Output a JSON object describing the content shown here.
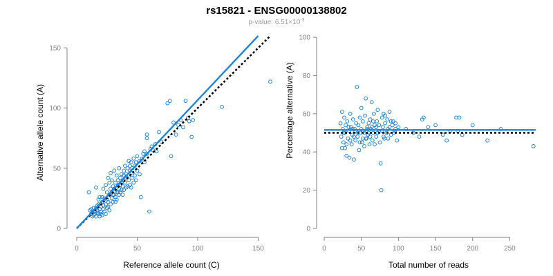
{
  "header": {
    "title": "rs15821 - ENSG00000138802",
    "pvalue_prefix": "p-value: 6.51×10",
    "pvalue_exponent": "-3"
  },
  "colors": {
    "points": "#1f84d6",
    "null_line": "#000000",
    "axes": "#7f7f7f"
  },
  "chart_data": [
    {
      "type": "scatter",
      "xlabel": "Reference allele count (C)",
      "ylabel": "Alternative allele count (A)",
      "xlim": [
        0,
        160
      ],
      "ylim": [
        0,
        160
      ],
      "xticks": [
        0,
        50,
        100,
        150
      ],
      "yticks": [
        0,
        50,
        100,
        150
      ],
      "grid": false,
      "fit_line": {
        "x": [
          0,
          150
        ],
        "y": [
          0,
          160
        ]
      },
      "null_line": {
        "x": [
          0,
          160
        ],
        "y": [
          0,
          160
        ]
      },
      "points": [
        [
          11,
          15
        ],
        [
          12,
          12
        ],
        [
          12,
          16
        ],
        [
          13,
          10
        ],
        [
          13,
          14
        ],
        [
          14,
          17
        ],
        [
          14,
          11
        ],
        [
          15,
          14
        ],
        [
          15,
          12
        ],
        [
          16,
          17
        ],
        [
          16,
          10
        ],
        [
          17,
          13
        ],
        [
          17,
          15
        ],
        [
          18,
          20
        ],
        [
          18,
          12
        ],
        [
          19,
          16
        ],
        [
          19,
          10
        ],
        [
          20,
          18
        ],
        [
          20,
          14
        ],
        [
          21,
          22
        ],
        [
          21,
          11
        ],
        [
          22,
          16
        ],
        [
          22,
          19
        ],
        [
          23,
          25
        ],
        [
          23,
          14
        ],
        [
          24,
          20
        ],
        [
          24,
          12
        ],
        [
          25,
          24
        ],
        [
          25,
          30
        ],
        [
          26,
          18
        ],
        [
          26,
          22
        ],
        [
          27,
          28
        ],
        [
          27,
          15
        ],
        [
          28,
          33
        ],
        [
          28,
          20
        ],
        [
          29,
          25
        ],
        [
          29,
          30
        ],
        [
          30,
          35
        ],
        [
          30,
          22
        ],
        [
          31,
          28
        ],
        [
          31,
          33
        ],
        [
          32,
          26
        ],
        [
          32,
          38
        ],
        [
          33,
          30
        ],
        [
          33,
          24
        ],
        [
          34,
          36
        ],
        [
          34,
          40
        ],
        [
          35,
          28
        ],
        [
          35,
          33
        ],
        [
          36,
          42
        ],
        [
          36,
          30
        ],
        [
          37,
          38
        ],
        [
          37,
          45
        ],
        [
          38,
          35
        ],
        [
          38,
          40
        ],
        [
          39,
          48
        ],
        [
          39,
          32
        ],
        [
          40,
          42
        ],
        [
          40,
          38
        ],
        [
          41,
          45
        ],
        [
          42,
          35
        ],
        [
          42,
          50
        ],
        [
          43,
          44
        ],
        [
          43,
          40
        ],
        [
          44,
          48
        ],
        [
          44,
          36
        ],
        [
          45,
          55
        ],
        [
          46,
          42
        ],
        [
          46,
          50
        ],
        [
          47,
          38
        ],
        [
          48,
          52
        ],
        [
          48,
          44
        ],
        [
          49,
          40
        ],
        [
          50,
          48
        ],
        [
          52,
          45
        ],
        [
          53,
          26
        ],
        [
          55,
          62
        ],
        [
          56,
          55
        ],
        [
          58,
          78
        ],
        [
          58,
          75
        ],
        [
          60,
          14
        ],
        [
          62,
          68
        ],
        [
          63,
          65
        ],
        [
          65,
          70
        ],
        [
          66,
          64
        ],
        [
          68,
          80
        ],
        [
          70,
          72
        ],
        [
          75,
          104
        ],
        [
          77,
          106
        ],
        [
          78,
          60
        ],
        [
          80,
          88
        ],
        [
          82,
          78
        ],
        [
          84,
          86
        ],
        [
          86,
          90
        ],
        [
          88,
          84
        ],
        [
          90,
          106
        ],
        [
          92,
          92
        ],
        [
          93,
          89
        ],
        [
          95,
          76
        ],
        [
          96,
          90
        ],
        [
          120,
          101
        ],
        [
          160,
          122
        ],
        [
          10,
          30
        ],
        [
          16,
          34
        ],
        [
          17,
          19
        ],
        [
          18,
          24
        ],
        [
          19,
          26
        ],
        [
          20,
          12
        ],
        [
          21,
          26
        ],
        [
          22,
          33
        ],
        [
          24,
          36
        ],
        [
          25,
          17
        ],
        [
          26,
          42
        ],
        [
          27,
          38
        ],
        [
          28,
          46
        ],
        [
          29,
          40
        ],
        [
          30,
          28
        ],
        [
          31,
          48
        ],
        [
          32,
          22
        ],
        [
          33,
          44
        ],
        [
          34,
          30
        ],
        [
          35,
          50
        ],
        [
          36,
          36
        ],
        [
          37,
          32
        ],
        [
          38,
          28
        ],
        [
          39,
          44
        ],
        [
          40,
          52
        ],
        [
          41,
          34
        ],
        [
          43,
          56
        ],
        [
          44,
          52
        ],
        [
          45,
          34
        ],
        [
          46,
          46
        ],
        [
          47,
          58
        ],
        [
          49,
          55
        ],
        [
          50,
          60
        ],
        [
          52,
          56
        ],
        [
          54,
          58
        ],
        [
          56,
          64
        ],
        [
          58,
          62
        ],
        [
          61,
          66
        ]
      ]
    },
    {
      "type": "scatter",
      "xlabel": "Total number of reads",
      "ylabel": "Percentage alternative (A)",
      "xlim": [
        0,
        285
      ],
      "ylim": [
        0,
        100
      ],
      "xticks": [
        0,
        50,
        100,
        150,
        200,
        250
      ],
      "yticks": [
        0,
        20,
        40,
        60,
        80,
        100
      ],
      "grid": false,
      "fit_line": {
        "x": [
          0,
          285
        ],
        "y": [
          51.5,
          51.5
        ]
      },
      "null_line": {
        "x": [
          0,
          285
        ],
        "y": [
          50,
          50
        ]
      },
      "points": [
        [
          22,
          55
        ],
        [
          23,
          48
        ],
        [
          24,
          61
        ],
        [
          25,
          52
        ],
        [
          26,
          45
        ],
        [
          27,
          58
        ],
        [
          28,
          50
        ],
        [
          28,
          42
        ],
        [
          29,
          54
        ],
        [
          30,
          38
        ],
        [
          31,
          56
        ],
        [
          32,
          47
        ],
        [
          33,
          51
        ],
        [
          34,
          37
        ],
        [
          35,
          60
        ],
        [
          36,
          53
        ],
        [
          37,
          44
        ],
        [
          38,
          49
        ],
        [
          39,
          57
        ],
        [
          40,
          36
        ],
        [
          41,
          52
        ],
        [
          42,
          46
        ],
        [
          43,
          55
        ],
        [
          44,
          74
        ],
        [
          45,
          48
        ],
        [
          46,
          54
        ],
        [
          47,
          41
        ],
        [
          48,
          58
        ],
        [
          49,
          50
        ],
        [
          50,
          63
        ],
        [
          51,
          45
        ],
        [
          52,
          56
        ],
        [
          53,
          51
        ],
        [
          54,
          43
        ],
        [
          55,
          59
        ],
        [
          56,
          68
        ],
        [
          57,
          47
        ],
        [
          58,
          53
        ],
        [
          59,
          49
        ],
        [
          60,
          55
        ],
        [
          61,
          44
        ],
        [
          62,
          57
        ],
        [
          63,
          52
        ],
        [
          64,
          66
        ],
        [
          65,
          46
        ],
        [
          66,
          50
        ],
        [
          67,
          60
        ],
        [
          68,
          54
        ],
        [
          70,
          48
        ],
        [
          71,
          56
        ],
        [
          72,
          62
        ],
        [
          74,
          51
        ],
        [
          75,
          45
        ],
        [
          76,
          34
        ],
        [
          77,
          20
        ],
        [
          78,
          58
        ],
        [
          79,
          53
        ],
        [
          80,
          60
        ],
        [
          81,
          47
        ],
        [
          82,
          55
        ],
        [
          84,
          50
        ],
        [
          85,
          57
        ],
        [
          86,
          52
        ],
        [
          88,
          61
        ],
        [
          90,
          49
        ],
        [
          92,
          54
        ],
        [
          93,
          56
        ],
        [
          95,
          51
        ],
        [
          96,
          55
        ],
        [
          98,
          46
        ],
        [
          100,
          53
        ],
        [
          110,
          52
        ],
        [
          120,
          50
        ],
        [
          128,
          48
        ],
        [
          132,
          57
        ],
        [
          134,
          58
        ],
        [
          140,
          53
        ],
        [
          150,
          54
        ],
        [
          160,
          49
        ],
        [
          165,
          46
        ],
        [
          170,
          51
        ],
        [
          178,
          58
        ],
        [
          180,
          51
        ],
        [
          182,
          58
        ],
        [
          186,
          49
        ],
        [
          200,
          54
        ],
        [
          220,
          46
        ],
        [
          238,
          52
        ],
        [
          282,
          43
        ],
        [
          24,
          42
        ],
        [
          26,
          50
        ],
        [
          30,
          44
        ],
        [
          33,
          53
        ],
        [
          35,
          46
        ],
        [
          38,
          52
        ],
        [
          40,
          48
        ],
        [
          42,
          51
        ],
        [
          45,
          50
        ],
        [
          48,
          45
        ],
        [
          50,
          52
        ],
        [
          52,
          47
        ],
        [
          54,
          50
        ],
        [
          56,
          47
        ],
        [
          58,
          52
        ],
        [
          60,
          50
        ],
        [
          62,
          48
        ],
        [
          64,
          53
        ],
        [
          66,
          56
        ],
        [
          68,
          44
        ],
        [
          70,
          53
        ],
        [
          72,
          50
        ],
        [
          74,
          54
        ],
        [
          78,
          51
        ],
        [
          80,
          48
        ],
        [
          82,
          59
        ],
        [
          86,
          47
        ],
        [
          88,
          53
        ],
        [
          90,
          56
        ],
        [
          94,
          50
        ],
        [
          96,
          52
        ]
      ]
    }
  ]
}
